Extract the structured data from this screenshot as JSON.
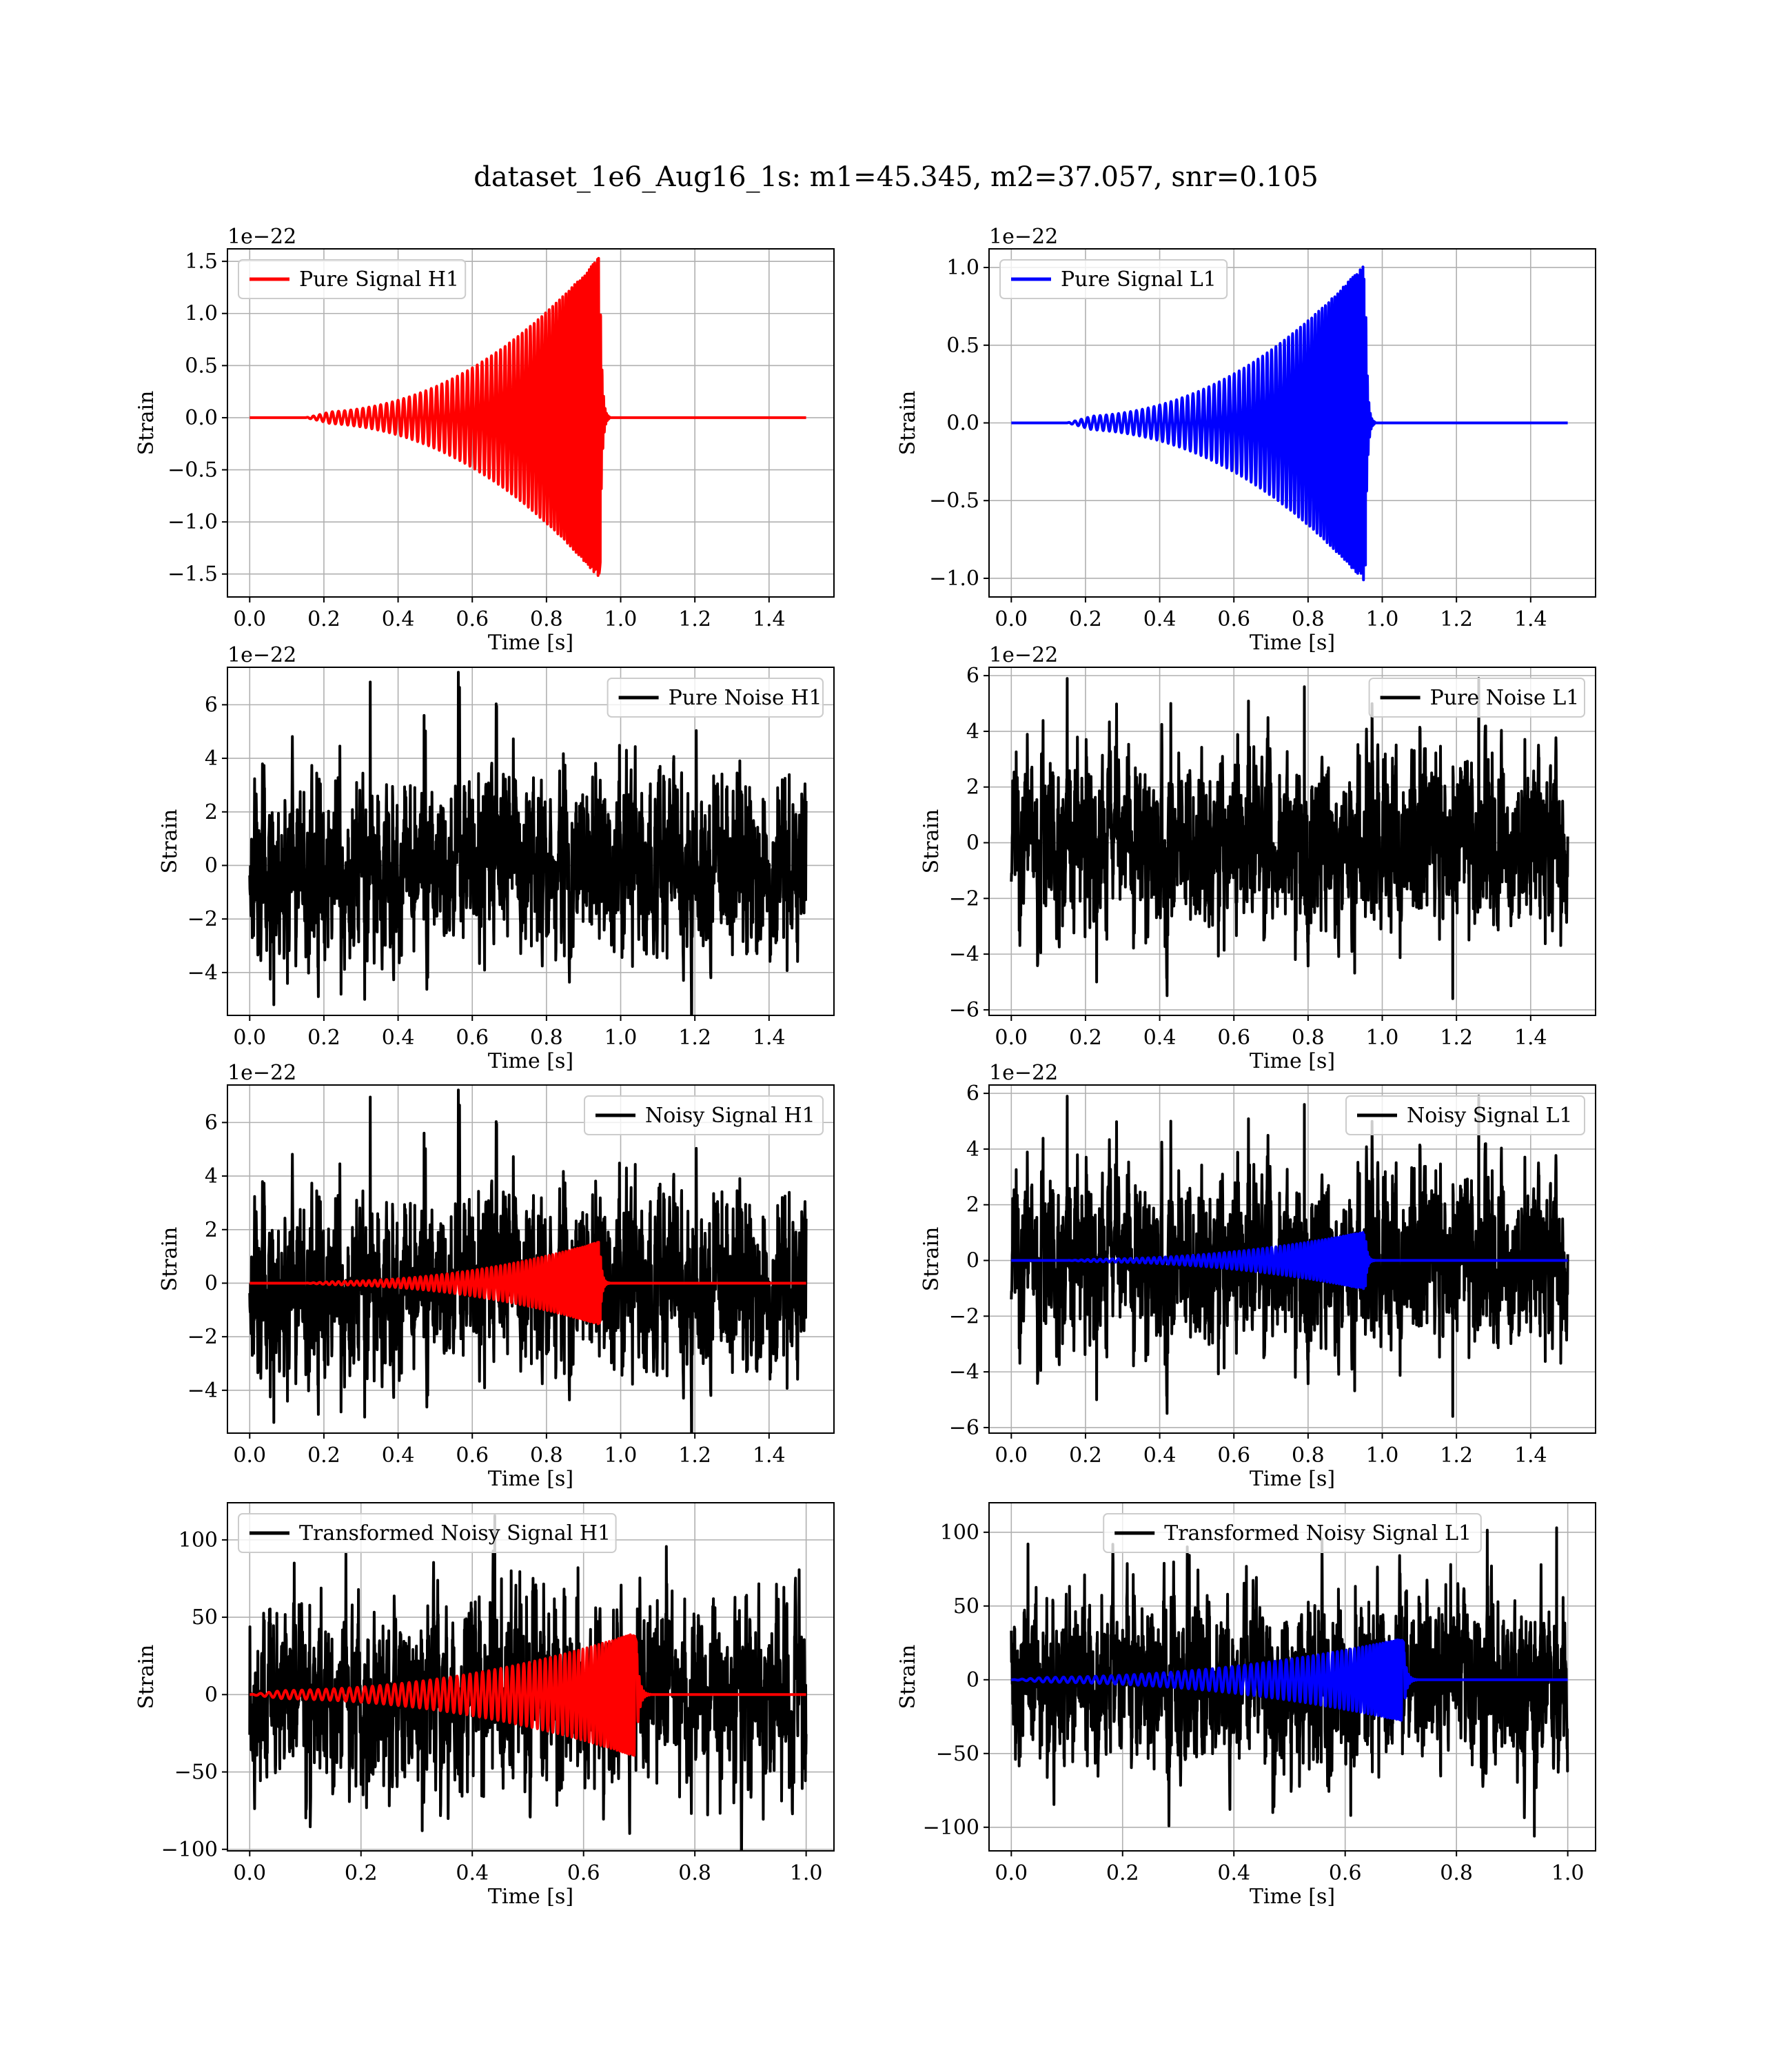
{
  "figure": {
    "title": "dataset_1e6_Aug16_1s: m1=45.345, m2=37.057, snr=0.105"
  },
  "colors": {
    "h1": "#ff0000",
    "l1": "#0000ff",
    "noise": "#000000"
  },
  "chart_data": [
    {
      "id": "pure-signal-h1",
      "type": "line",
      "xlabel": "Time [s]",
      "ylabel": "Strain",
      "offset_text": "1e−22",
      "xlim": [
        -0.06,
        1.575
      ],
      "ylim": [
        -1.72,
        1.62
      ],
      "xticks": [
        0.0,
        0.2,
        0.4,
        0.6,
        0.8,
        1.0,
        1.2,
        1.4
      ],
      "xtick_labels": [
        "0.0",
        "0.2",
        "0.4",
        "0.6",
        "0.8",
        "1.0",
        "1.2",
        "1.4"
      ],
      "yticks": [
        1.5,
        1.0,
        0.5,
        0.0,
        -0.5,
        -1.0,
        -1.5
      ],
      "ytick_labels": [
        "1.5",
        "1.0",
        "0.5",
        "0.0",
        "−0.5",
        "−1.0",
        "−1.5"
      ],
      "legend": {
        "position": "upper left",
        "entries": [
          {
            "label": "Pure Signal H1",
            "color": "#ff0000"
          }
        ]
      },
      "grid": true,
      "series": [
        {
          "name": "Pure Signal H1",
          "color": "#ff0000",
          "kind": "chirp",
          "x_start": 0.0,
          "x_end": 1.5,
          "t_start": 0.15,
          "t_merger": 0.945,
          "amp_start": 0.05,
          "amp_peak": 1.55,
          "f0": 12,
          "f1": 95
        }
      ]
    },
    {
      "id": "pure-signal-l1",
      "type": "line",
      "xlabel": "Time [s]",
      "ylabel": "Strain",
      "offset_text": "1e−22",
      "xlim": [
        -0.06,
        1.575
      ],
      "ylim": [
        -1.12,
        1.12
      ],
      "xticks": [
        0.0,
        0.2,
        0.4,
        0.6,
        0.8,
        1.0,
        1.2,
        1.4
      ],
      "xtick_labels": [
        "0.0",
        "0.2",
        "0.4",
        "0.6",
        "0.8",
        "1.0",
        "1.2",
        "1.4"
      ],
      "yticks": [
        1.0,
        0.5,
        0.0,
        -0.5,
        -1.0
      ],
      "ytick_labels": [
        "1.0",
        "0.5",
        "0.0",
        "−0.5",
        "−1.0"
      ],
      "legend": {
        "position": "upper left",
        "entries": [
          {
            "label": "Pure Signal L1",
            "color": "#0000ff"
          }
        ]
      },
      "grid": true,
      "series": [
        {
          "name": "Pure Signal L1",
          "color": "#0000ff",
          "kind": "chirp",
          "x_start": 0.0,
          "x_end": 1.5,
          "t_start": 0.15,
          "t_merger": 0.955,
          "amp_start": 0.04,
          "amp_peak": 1.03,
          "f0": 12,
          "f1": 95
        }
      ]
    },
    {
      "id": "pure-noise-h1",
      "type": "line",
      "xlabel": "Time [s]",
      "ylabel": "Strain",
      "offset_text": "1e−22",
      "xlim": [
        -0.06,
        1.575
      ],
      "ylim": [
        -5.6,
        7.4
      ],
      "xticks": [
        0.0,
        0.2,
        0.4,
        0.6,
        0.8,
        1.0,
        1.2,
        1.4
      ],
      "xtick_labels": [
        "0.0",
        "0.2",
        "0.4",
        "0.6",
        "0.8",
        "1.0",
        "1.2",
        "1.4"
      ],
      "yticks": [
        6,
        4,
        2,
        0,
        -2,
        -4
      ],
      "ytick_labels": [
        "6",
        "4",
        "2",
        "0",
        "−2",
        "−4"
      ],
      "legend": {
        "position": "upper right",
        "entries": [
          {
            "label": "Pure Noise H1",
            "color": "#000000"
          }
        ]
      },
      "grid": true,
      "series": [
        {
          "name": "Pure Noise H1",
          "color": "#000000",
          "kind": "noise",
          "x_start": 0.0,
          "x_end": 1.5,
          "sigma": 1.6,
          "seed": 11,
          "peaks": [
            [
              0.325,
              6.85
            ],
            [
              0.065,
              -5.2
            ],
            [
              0.185,
              -4.9
            ],
            [
              0.31,
              -5.0
            ],
            [
              0.47,
              5.6
            ]
          ]
        }
      ]
    },
    {
      "id": "pure-noise-l1",
      "type": "line",
      "xlabel": "Time [s]",
      "ylabel": "Strain",
      "offset_text": "1e−22",
      "xlim": [
        -0.06,
        1.575
      ],
      "ylim": [
        -6.2,
        6.3
      ],
      "xticks": [
        0.0,
        0.2,
        0.4,
        0.6,
        0.8,
        1.0,
        1.2,
        1.4
      ],
      "xtick_labels": [
        "0.0",
        "0.2",
        "0.4",
        "0.6",
        "0.8",
        "1.0",
        "1.2",
        "1.4"
      ],
      "yticks": [
        6,
        4,
        2,
        0,
        -2,
        -4,
        -6
      ],
      "ytick_labels": [
        "6",
        "4",
        "2",
        "0",
        "−2",
        "−4",
        "−6"
      ],
      "legend": {
        "position": "upper right",
        "entries": [
          {
            "label": "Pure Noise L1",
            "color": "#000000"
          }
        ]
      },
      "grid": true,
      "series": [
        {
          "name": "Pure Noise L1",
          "color": "#000000",
          "kind": "noise",
          "x_start": 0.0,
          "x_end": 1.5,
          "sigma": 1.5,
          "seed": 23,
          "peaks": [
            [
              1.19,
              -5.6
            ],
            [
              1.26,
              5.9
            ],
            [
              0.79,
              5.6
            ],
            [
              0.43,
              5.0
            ],
            [
              0.23,
              -5.0
            ]
          ]
        }
      ]
    },
    {
      "id": "noisy-signal-h1",
      "type": "line",
      "xlabel": "Time [s]",
      "ylabel": "Strain",
      "offset_text": "1e−22",
      "xlim": [
        -0.06,
        1.575
      ],
      "ylim": [
        -5.6,
        7.4
      ],
      "xticks": [
        0.0,
        0.2,
        0.4,
        0.6,
        0.8,
        1.0,
        1.2,
        1.4
      ],
      "xtick_labels": [
        "0.0",
        "0.2",
        "0.4",
        "0.6",
        "0.8",
        "1.0",
        "1.2",
        "1.4"
      ],
      "yticks": [
        6,
        4,
        2,
        0,
        -2,
        -4
      ],
      "ytick_labels": [
        "6",
        "4",
        "2",
        "0",
        "−2",
        "−4"
      ],
      "legend": {
        "position": "upper right",
        "entries": [
          {
            "label": "Noisy Signal H1",
            "color": "#000000"
          }
        ]
      },
      "grid": true,
      "series": [
        {
          "name": "Noisy Signal H1",
          "color": "#000000",
          "kind": "noise",
          "x_start": 0.0,
          "x_end": 1.5,
          "sigma": 1.6,
          "seed": 11,
          "peaks": [
            [
              0.325,
              6.95
            ],
            [
              0.065,
              -5.2
            ],
            [
              0.185,
              -4.9
            ],
            [
              0.31,
              -5.0
            ],
            [
              0.47,
              5.6
            ]
          ]
        },
        {
          "color": "#ff0000",
          "kind": "chirp",
          "x_start": 0.0,
          "x_end": 1.5,
          "t_start": 0.15,
          "t_merger": 0.945,
          "amp_start": 0.05,
          "amp_peak": 1.55,
          "f0": 12,
          "f1": 95
        }
      ]
    },
    {
      "id": "noisy-signal-l1",
      "type": "line",
      "xlabel": "Time [s]",
      "ylabel": "Strain",
      "offset_text": "1e−22",
      "xlim": [
        -0.06,
        1.575
      ],
      "ylim": [
        -6.2,
        6.3
      ],
      "xticks": [
        0.0,
        0.2,
        0.4,
        0.6,
        0.8,
        1.0,
        1.2,
        1.4
      ],
      "xtick_labels": [
        "0.0",
        "0.2",
        "0.4",
        "0.6",
        "0.8",
        "1.0",
        "1.2",
        "1.4"
      ],
      "yticks": [
        6,
        4,
        2,
        0,
        -2,
        -4,
        -6
      ],
      "ytick_labels": [
        "6",
        "4",
        "2",
        "0",
        "−2",
        "−4",
        "−6"
      ],
      "legend": {
        "position": "upper right",
        "entries": [
          {
            "label": "Noisy Signal L1",
            "color": "#000000"
          }
        ]
      },
      "grid": true,
      "series": [
        {
          "name": "Noisy Signal L1",
          "color": "#000000",
          "kind": "noise",
          "x_start": 0.0,
          "x_end": 1.5,
          "sigma": 1.5,
          "seed": 23,
          "peaks": [
            [
              1.19,
              -5.6
            ],
            [
              1.26,
              5.9
            ],
            [
              0.79,
              5.6
            ],
            [
              0.43,
              5.0
            ],
            [
              0.23,
              -5.0
            ]
          ]
        },
        {
          "color": "#0000ff",
          "kind": "chirp",
          "x_start": 0.0,
          "x_end": 1.5,
          "t_start": 0.15,
          "t_merger": 0.955,
          "amp_start": 0.04,
          "amp_peak": 1.03,
          "f0": 12,
          "f1": 95
        }
      ]
    },
    {
      "id": "transformed-noisy-signal-h1",
      "type": "line",
      "xlabel": "Time [s]",
      "ylabel": "Strain",
      "offset_text": "",
      "xlim": [
        -0.04,
        1.05
      ],
      "ylim": [
        -101,
        124
      ],
      "xticks": [
        0.0,
        0.2,
        0.4,
        0.6,
        0.8,
        1.0
      ],
      "xtick_labels": [
        "0.0",
        "0.2",
        "0.4",
        "0.6",
        "0.8",
        "1.0"
      ],
      "yticks": [
        100,
        50,
        0,
        -50,
        -100
      ],
      "ytick_labels": [
        "100",
        "50",
        "0",
        "−50",
        "−100"
      ],
      "legend": {
        "position": "upper left",
        "entries": [
          {
            "label": "Transformed Noisy Signal H1",
            "color": "#000000"
          }
        ]
      },
      "grid": true,
      "series": [
        {
          "name": "Transformed Noisy Signal H1",
          "color": "#000000",
          "kind": "noise",
          "x_start": 0.0,
          "x_end": 1.0,
          "sigma": 28,
          "seed": 37,
          "peaks": [
            [
              0.31,
              -88
            ],
            [
              0.08,
              85
            ],
            [
              0.59,
              82
            ],
            [
              0.47,
              80
            ],
            [
              0.87,
              -70
            ]
          ]
        },
        {
          "color": "#ff0000",
          "kind": "chirp",
          "x_start": 0.0,
          "x_end": 1.0,
          "t_start": 0.0,
          "t_merger": 0.695,
          "amp_start": 2.5,
          "amp_peak": 40,
          "f0": 10,
          "f1": 110
        }
      ]
    },
    {
      "id": "transformed-noisy-signal-l1",
      "type": "line",
      "xlabel": "Time [s]",
      "ylabel": "Strain",
      "offset_text": "",
      "xlim": [
        -0.04,
        1.05
      ],
      "ylim": [
        -116,
        120
      ],
      "xticks": [
        0.0,
        0.2,
        0.4,
        0.6,
        0.8,
        1.0
      ],
      "xtick_labels": [
        "0.0",
        "0.2",
        "0.4",
        "0.6",
        "0.8",
        "1.0"
      ],
      "yticks": [
        100,
        50,
        0,
        -50,
        -100
      ],
      "ytick_labels": [
        "100",
        "50",
        "0",
        "−50",
        "−100"
      ],
      "legend": {
        "position": "upper center",
        "entries": [
          {
            "label": "Transformed Noisy Signal L1",
            "color": "#000000"
          }
        ]
      },
      "grid": true,
      "series": [
        {
          "name": "Transformed Noisy Signal L1",
          "color": "#000000",
          "kind": "noise",
          "x_start": 0.0,
          "x_end": 1.0,
          "sigma": 28,
          "seed": 53,
          "peaks": [
            [
              0.94,
              -106
            ],
            [
              0.98,
              103
            ],
            [
              0.03,
              92
            ],
            [
              0.47,
              -90
            ],
            [
              0.61,
              -92
            ]
          ]
        },
        {
          "color": "#0000ff",
          "kind": "chirp",
          "x_start": 0.0,
          "x_end": 1.0,
          "t_start": 0.0,
          "t_merger": 0.705,
          "amp_start": 1.5,
          "amp_peak": 28,
          "f0": 10,
          "f1": 110
        }
      ]
    }
  ]
}
